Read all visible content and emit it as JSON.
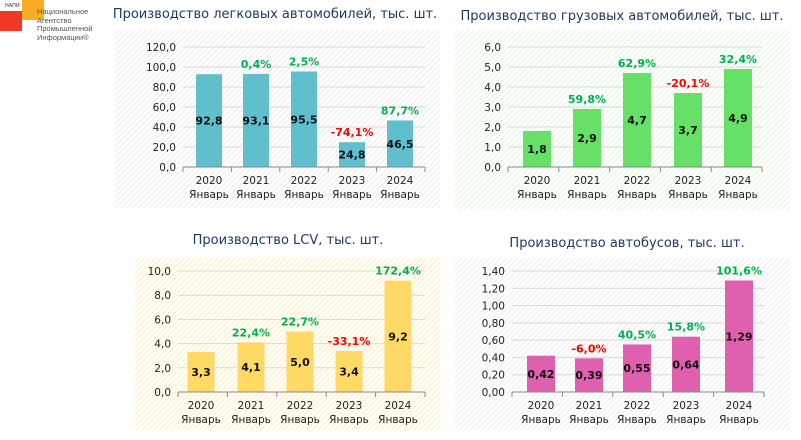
{
  "logo": {
    "small": "НАПИ",
    "text": [
      "Национальное",
      "Агентство",
      "Промышленной",
      "Информации®"
    ]
  },
  "colors": {
    "positive": "#00b050",
    "negative": "#ff0000"
  },
  "chart_data": [
    {
      "type": "bar",
      "title": "Производство легковых автомобилей, тыс. шт.",
      "categories": [
        [
          "2020",
          "Январь"
        ],
        [
          "2021",
          "Январь"
        ],
        [
          "2022",
          "Январь"
        ],
        [
          "2023",
          "Январь"
        ],
        [
          "2024",
          "Январь"
        ]
      ],
      "values": [
        92.8,
        93.1,
        95.5,
        24.8,
        46.5
      ],
      "value_labels": [
        "92,8",
        "93,1",
        "95,5",
        "24,8",
        "46,5"
      ],
      "change_labels": [
        "",
        "0,4%",
        "2,5%",
        "-74,1%",
        "87,7%"
      ],
      "ylim": [
        0,
        120
      ],
      "yticks": [
        "0,0",
        "20,0",
        "40,0",
        "60,0",
        "80,0",
        "100,0",
        "120,0"
      ],
      "grid": true,
      "bar_color": "#5fbfcc",
      "background": "#f0f0f0"
    },
    {
      "type": "bar",
      "title": "Производство грузовых автомобилей, тыс. шт.",
      "categories": [
        [
          "2020",
          "Январь"
        ],
        [
          "2021",
          "Январь"
        ],
        [
          "2022",
          "Январь"
        ],
        [
          "2023",
          "Январь"
        ],
        [
          "2024",
          "Январь"
        ]
      ],
      "values": [
        1.8,
        2.9,
        4.7,
        3.7,
        4.9
      ],
      "value_labels": [
        "1,8",
        "2,9",
        "4,7",
        "3,7",
        "4,9"
      ],
      "change_labels": [
        "",
        "59,8%",
        "62,9%",
        "-20,1%",
        "32,4%"
      ],
      "ylim": [
        0,
        6
      ],
      "yticks": [
        "0,0",
        "1,0",
        "2,0",
        "3,0",
        "4,0",
        "5,0",
        "6,0"
      ],
      "grid": true,
      "bar_color": "#66e066",
      "background": "#eaf8e6"
    },
    {
      "type": "bar",
      "title": "Производство LCV, тыс. шт.",
      "categories": [
        [
          "2020",
          "Январь"
        ],
        [
          "2021",
          "Январь"
        ],
        [
          "2022",
          "Январь"
        ],
        [
          "2023",
          "Январь"
        ],
        [
          "2024",
          "Январь"
        ]
      ],
      "values": [
        3.3,
        4.1,
        5.0,
        3.4,
        9.2
      ],
      "value_labels": [
        "3,3",
        "4,1",
        "5,0",
        "3,4",
        "9,2"
      ],
      "change_labels": [
        "",
        "22,4%",
        "22,7%",
        "-33,1%",
        "172,4%"
      ],
      "ylim": [
        0,
        10
      ],
      "yticks": [
        "0,0",
        "2,0",
        "4,0",
        "6,0",
        "8,0",
        "10,0"
      ],
      "grid": true,
      "bar_color": "#ffd966",
      "background": "#fff3cc"
    },
    {
      "type": "bar",
      "title": "Производство автобусов, тыс. шт.",
      "categories": [
        [
          "2020",
          "Январь"
        ],
        [
          "2021",
          "Январь"
        ],
        [
          "2022",
          "Январь"
        ],
        [
          "2023",
          "Январь"
        ],
        [
          "2024",
          "Январь"
        ]
      ],
      "values": [
        0.42,
        0.39,
        0.55,
        0.64,
        1.29
      ],
      "value_labels": [
        "0,42",
        "0,39",
        "0,55",
        "0,64",
        "1,29"
      ],
      "change_labels": [
        "",
        "-6,0%",
        "40,5%",
        "15,8%",
        "101,6%"
      ],
      "ylim": [
        0,
        1.4
      ],
      "yticks": [
        "0,00",
        "0,20",
        "0,40",
        "0,60",
        "0,80",
        "1,00",
        "1,20",
        "1,40"
      ],
      "grid": true,
      "bar_color": "#e060b0",
      "background": "#f2f2f2"
    }
  ]
}
